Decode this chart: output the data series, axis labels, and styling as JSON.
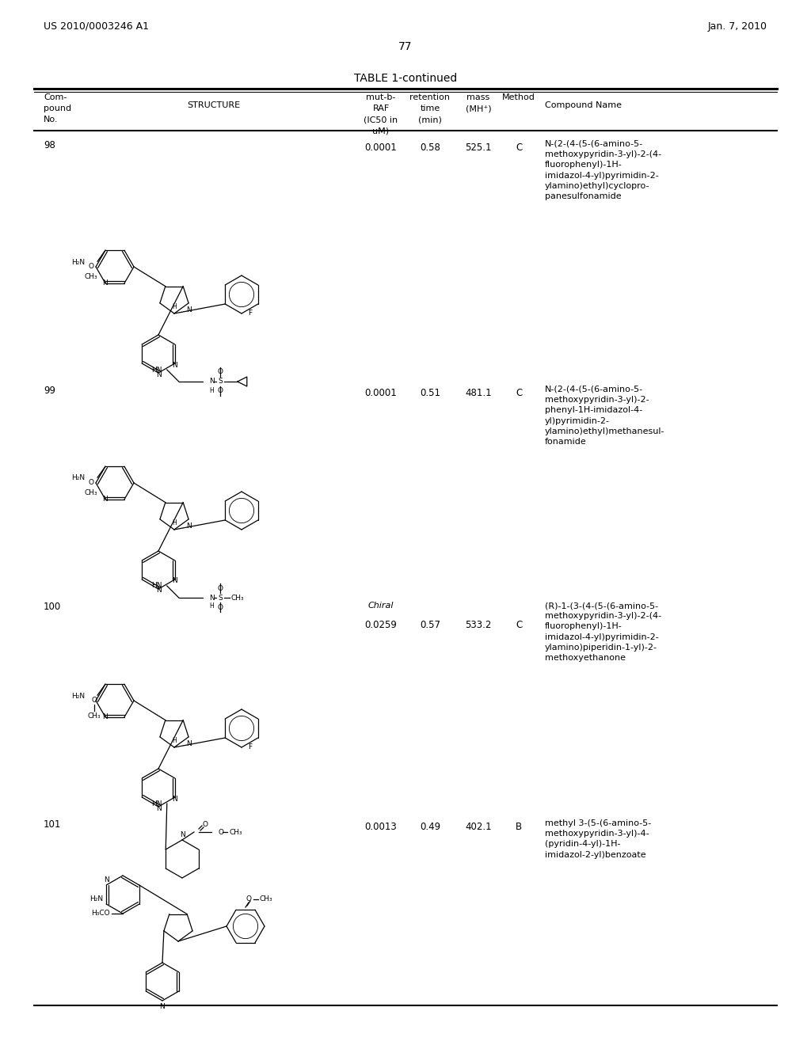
{
  "page_header_left": "US 2010/0003246 A1",
  "page_header_right": "Jan. 7, 2010",
  "page_number": "77",
  "table_title": "TABLE 1-continued",
  "rows": [
    {
      "no": "98",
      "mut_b_raf": "0.0001",
      "retention_time": "0.58",
      "mass": "525.1",
      "method": "C",
      "compound_name": "N-(2-(4-(5-(6-amino-5-\nmethoxypyridin-3-yl)-2-(4-\nfluorophenyl)-1H-\nimidazol-4-yl)pyrimidin-2-\nylamino)ethyl)cyclopro-\npanesulfonamide"
    },
    {
      "no": "99",
      "mut_b_raf": "0.0001",
      "retention_time": "0.51",
      "mass": "481.1",
      "method": "C",
      "compound_name": "N-(2-(4-(5-(6-amino-5-\nmethoxypyridin-3-yl)-2-\nphenyl-1H-imidazol-4-\nyl)pyrimidin-2-\nylamino)ethyl)methanesul-\nfonamide"
    },
    {
      "no": "100",
      "mut_b_raf": "0.0259",
      "retention_time": "0.57",
      "mass": "533.2",
      "method": "C",
      "compound_name": "(R)-1-(3-(4-(5-(6-amino-5-\nmethoxypyridin-3-yl)-2-(4-\nfluorophenyl)-1H-\nimidazol-4-yl)pyrimidin-2-\nylamino)piperidin-1-yl)-2-\nmethoxyethanone",
      "chiral_note": "Chiral"
    },
    {
      "no": "101",
      "mut_b_raf": "0.0013",
      "retention_time": "0.49",
      "mass": "402.1",
      "method": "B",
      "compound_name": "methyl 3-(5-(6-amino-5-\nmethoxypyridin-3-yl)-4-\n(pyridin-4-yl)-1H-\nimidazol-2-yl)benzoate"
    }
  ],
  "background_color": "#ffffff",
  "text_color": "#000000"
}
